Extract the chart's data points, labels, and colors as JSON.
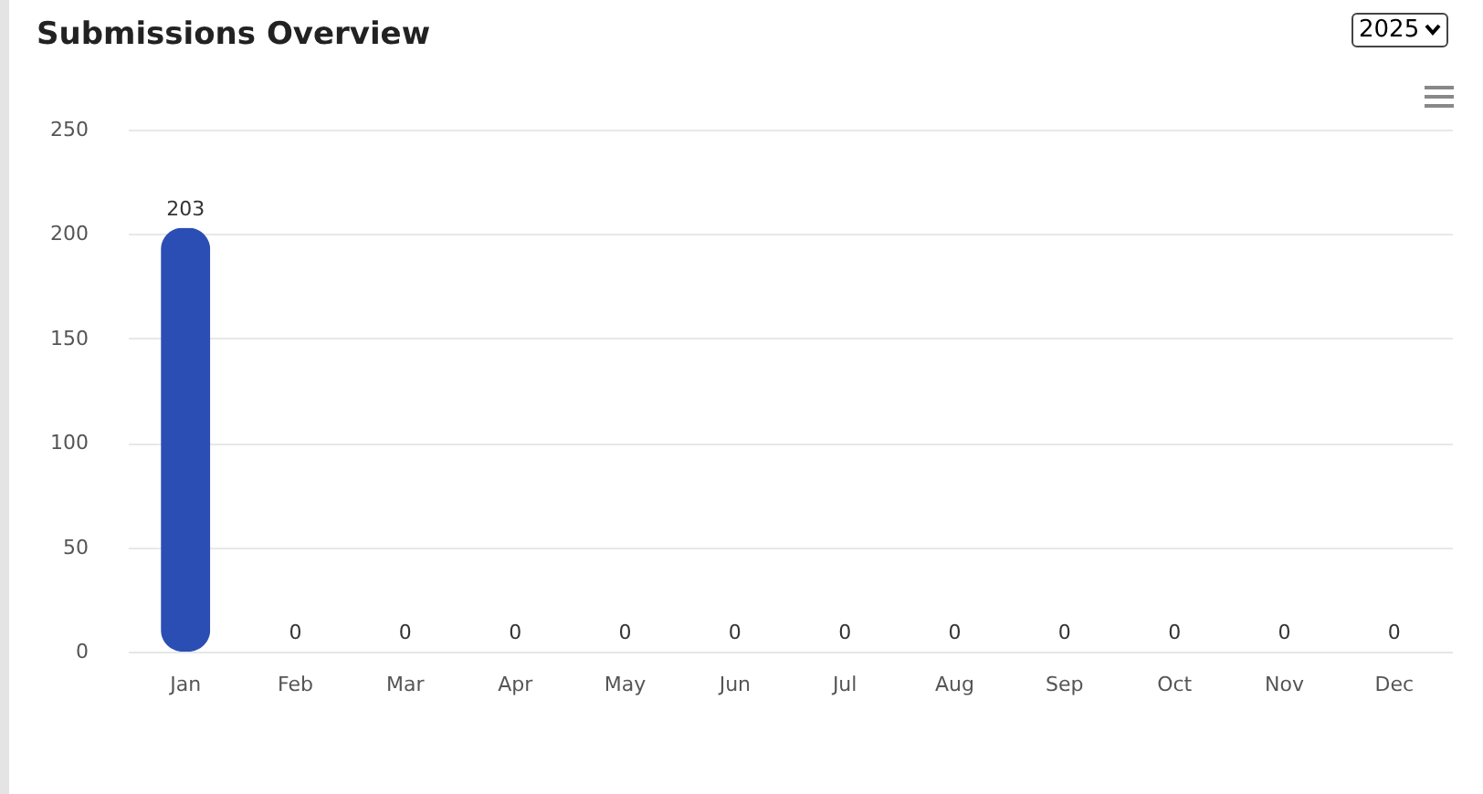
{
  "chart_data": {
    "type": "bar",
    "title": "Submissions Overview",
    "categories": [
      "Jan",
      "Feb",
      "Mar",
      "Apr",
      "May",
      "Jun",
      "Jul",
      "Aug",
      "Sep",
      "Oct",
      "Nov",
      "Dec"
    ],
    "values": [
      203,
      0,
      0,
      0,
      0,
      0,
      0,
      0,
      0,
      0,
      0,
      0
    ],
    "color": "#2b4eb4",
    "ylim": [
      0,
      250
    ],
    "yticks": [
      0,
      50,
      100,
      150,
      200,
      250
    ],
    "grid": "y",
    "data_labels": true,
    "annotations": [
      "2025"
    ]
  }
}
